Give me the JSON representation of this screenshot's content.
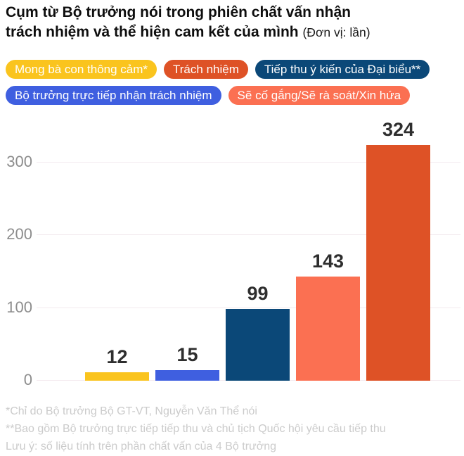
{
  "title": {
    "line1": "Cụm từ Bộ trưởng nói trong phiên chất vấn nhận",
    "line2": "trách nhiệm và thể hiện cam kết của mình",
    "unit": "(Đơn vị: lần)"
  },
  "legend": {
    "rows": [
      [
        {
          "label": "Mong bà con thông cảm*",
          "color": "#FAC41E"
        },
        {
          "label": "Trách nhiệm",
          "color": "#DE5226"
        },
        {
          "label": "Tiếp thu ý kiến của Đại biểu**",
          "color": "#0B4878"
        }
      ],
      [
        {
          "label": "Bộ trưởng trực tiếp nhận trách nhiệm",
          "color": "#3F5FE0"
        },
        {
          "label": "Sẽ cố gắng/Sẽ rà soát/Xin hứa",
          "color": "#FB7052"
        }
      ]
    ]
  },
  "chart_data": {
    "type": "bar",
    "title": "Cụm từ Bộ trưởng nói trong phiên chất vấn nhận trách nhiệm và thể hiện cam kết của mình",
    "unit": "lần",
    "categories": [
      "Mong bà con thông cảm*",
      "Bộ trưởng trực tiếp nhận trách nhiệm",
      "Tiếp thu ý kiến của Đại biểu**",
      "Sẽ cố gắng/Sẽ rà soát/Xin hứa",
      "Trách nhiệm"
    ],
    "values": [
      12,
      15,
      99,
      143,
      324
    ],
    "colors": [
      "#FAC41E",
      "#3F5FE0",
      "#0B4878",
      "#FB7052",
      "#DE5226"
    ],
    "value_labels": [
      "12",
      "15",
      "99",
      "143",
      "324"
    ],
    "y_ticks": [
      0,
      100,
      200,
      300
    ],
    "ylim": [
      0,
      340
    ],
    "grid": true,
    "legend_position": "top",
    "gridline_color": "#f3eaef"
  },
  "footnotes": [
    "*Chỉ do Bộ trưởng Bộ GT-VT, Nguyễn Văn Thể nói",
    "**Bao gồm Bộ trưởng trực tiếp tiếp thu và chủ tịch Quốc hội yêu cầu tiếp thu",
    "Lưu ý: số liệu tính trên phần chất vấn của 4 Bộ trưởng"
  ]
}
